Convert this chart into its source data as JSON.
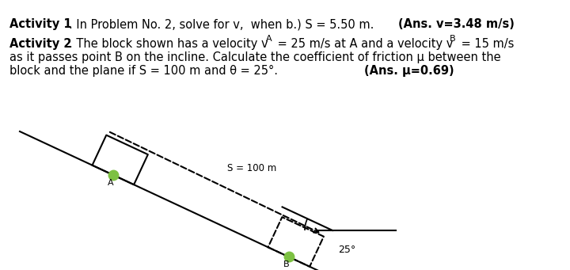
{
  "background_color": "#ffffff",
  "text_color": "#000000",
  "line_color": "#000000",
  "dot_color": "#7dc142",
  "theta_deg": 25,
  "fig_width": 7.2,
  "fig_height": 3.41,
  "dpi": 100,
  "s_label": "S = 100 m",
  "angle_label": "25°",
  "point_a_label": "A",
  "point_b_label": "B"
}
